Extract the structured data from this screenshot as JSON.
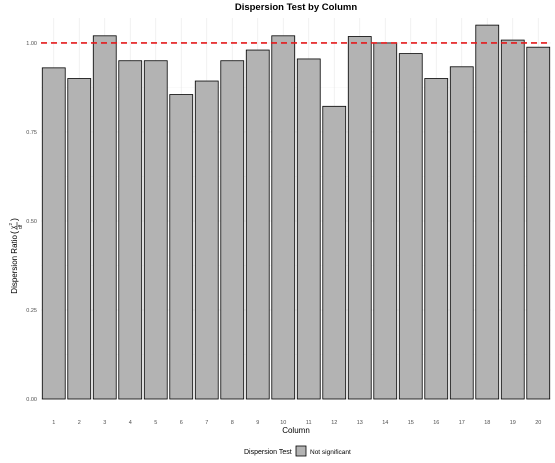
{
  "chart_data": {
    "type": "bar",
    "title": "Dispersion Test by Column",
    "xlabel": "Column",
    "ylabel": "Dispersion Ratio",
    "categories": [
      "1",
      "2",
      "3",
      "4",
      "5",
      "6",
      "7",
      "8",
      "9",
      "10",
      "11",
      "12",
      "13",
      "14",
      "15",
      "16",
      "17",
      "18",
      "19",
      "20"
    ],
    "values": [
      0.93,
      0.9,
      1.02,
      0.95,
      0.95,
      0.855,
      0.893,
      0.95,
      0.98,
      1.02,
      0.955,
      0.822,
      1.018,
      1.0,
      0.97,
      0.9,
      0.933,
      1.05,
      1.008,
      0.988
    ],
    "ylim": [
      0,
      1.07
    ],
    "yticks": [
      "0.00",
      "0.25",
      "0.50",
      "0.75",
      "1.00"
    ],
    "reference_line": {
      "y": 1.0,
      "color": "#e41a1c",
      "style": "dashed"
    },
    "bar_fill": "#b3b3b3",
    "bar_stroke": "#000000",
    "grid": true,
    "legend": {
      "title": "Dispersion Test",
      "position": "bottom",
      "items": [
        {
          "label": "Not significant",
          "color": "#b3b3b3"
        }
      ]
    }
  }
}
